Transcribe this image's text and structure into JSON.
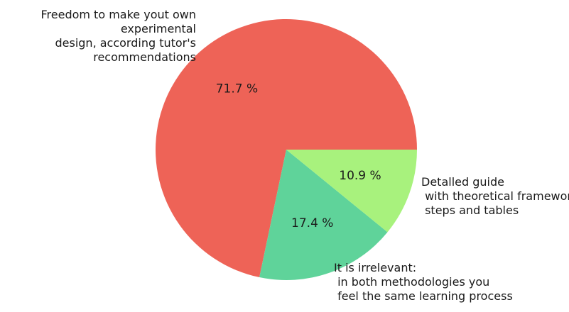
{
  "chart_data": {
    "type": "pie",
    "labels": [
      [
        "Freedom to make yout own",
        "experimental",
        "design, according tutor's",
        "recommendations"
      ],
      [
        "It is irrelevant:",
        " in both methodologies you",
        " feel the same learning process"
      ],
      [
        "Detalled guide",
        " with theoretical framework,",
        " steps and tables"
      ]
    ],
    "values": [
      71.7,
      17.4,
      10.9
    ],
    "value_labels": [
      "71.7 %",
      "17.4 %",
      "10.9 %"
    ],
    "colors": [
      "#ee6357",
      "#5fd39a",
      "#a8f27d"
    ],
    "start_angle_deg": 0,
    "direction": "counterclockwise"
  }
}
